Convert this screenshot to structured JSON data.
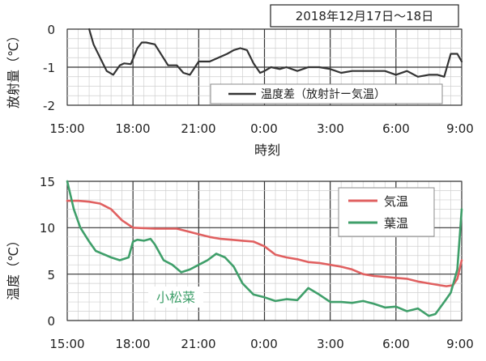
{
  "top_chart": {
    "date_label": "2018年12月17日～18日",
    "ylabel": "放射量（℃）",
    "xlabel": "時刻",
    "legend_label": "温度差（放射計ー気温）",
    "ytick_labels": [
      "0",
      "-1",
      "-2"
    ],
    "xtick_labels": [
      "15:00",
      "18:00",
      "21:00",
      "0:00",
      "3:00",
      "6:00",
      "9:00"
    ]
  },
  "bottom_chart": {
    "ylabel": "温度（℃）",
    "annotation": "小松菜",
    "legend": [
      {
        "label": "気温",
        "color": "#e06060"
      },
      {
        "label": "葉温",
        "color": "#3f9f6a"
      }
    ],
    "ytick_labels": [
      "15",
      "10",
      "5",
      "0"
    ],
    "xtick_labels": [
      "15:00",
      "18:00",
      "21:00",
      "0:00",
      "3:00",
      "6:00",
      "9:00"
    ]
  },
  "chart_data": [
    {
      "type": "line",
      "ylabel": "放射量（℃）",
      "xlabel": "時刻",
      "x_unit": "hours from 15:00",
      "ylim": [
        -2,
        0
      ],
      "xlim": [
        0,
        18
      ],
      "grid": true,
      "legend_position": "bottom-right",
      "series": [
        {
          "name": "温度差（放射計ー気温）",
          "color": "#333333",
          "x": [
            1.0,
            1.2,
            1.5,
            1.8,
            2.1,
            2.4,
            2.6,
            2.9,
            3.2,
            3.4,
            3.6,
            4.0,
            4.6,
            5.0,
            5.3,
            5.6,
            6.0,
            6.5,
            6.9,
            7.3,
            7.6,
            7.9,
            8.2,
            8.5,
            8.8,
            9.0,
            9.3,
            9.7,
            10.0,
            10.5,
            11.0,
            11.5,
            12.0,
            12.5,
            13.0,
            13.5,
            14.0,
            14.5,
            15.0,
            15.5,
            16.0,
            16.5,
            16.9,
            17.2,
            17.5,
            17.8,
            18.0
          ],
          "values": [
            0.0,
            -0.4,
            -0.75,
            -1.1,
            -1.2,
            -0.95,
            -0.9,
            -0.92,
            -0.5,
            -0.35,
            -0.35,
            -0.4,
            -0.95,
            -0.95,
            -1.15,
            -1.2,
            -0.85,
            -0.85,
            -0.75,
            -0.65,
            -0.55,
            -0.5,
            -0.55,
            -0.9,
            -1.15,
            -1.1,
            -1.0,
            -1.05,
            -1.0,
            -1.1,
            -1.0,
            -1.0,
            -1.05,
            -1.15,
            -1.1,
            -1.1,
            -1.1,
            -1.1,
            -1.2,
            -1.1,
            -1.25,
            -1.2,
            -1.2,
            -1.25,
            -0.65,
            -0.65,
            -0.85
          ]
        }
      ]
    },
    {
      "type": "line",
      "ylabel": "温度（℃）",
      "x_unit": "hours from 15:00",
      "ylim": [
        0,
        15
      ],
      "xlim": [
        0,
        18
      ],
      "grid": true,
      "legend_position": "top-right",
      "annotations": [
        "小松菜"
      ],
      "series": [
        {
          "name": "気温",
          "color": "#e06060",
          "x": [
            0,
            0.5,
            1.0,
            1.5,
            2.0,
            2.5,
            3.0,
            4.0,
            5.0,
            5.5,
            6.0,
            6.5,
            7.0,
            7.5,
            8.0,
            8.5,
            9.0,
            9.5,
            10.0,
            10.5,
            11.0,
            11.5,
            12.0,
            12.5,
            13.0,
            13.5,
            14.0,
            14.5,
            15.0,
            15.5,
            16.0,
            16.5,
            17.0,
            17.3,
            17.6,
            17.8,
            18.0
          ],
          "values": [
            12.9,
            12.9,
            12.8,
            12.6,
            12.0,
            10.8,
            10.0,
            9.9,
            9.9,
            9.6,
            9.3,
            9.0,
            8.8,
            8.7,
            8.6,
            8.5,
            8.0,
            7.1,
            6.8,
            6.6,
            6.3,
            6.2,
            6.0,
            5.8,
            5.5,
            5.0,
            4.8,
            4.7,
            4.6,
            4.5,
            4.2,
            4.0,
            3.8,
            3.7,
            3.8,
            4.5,
            6.5
          ]
        },
        {
          "name": "葉温",
          "color": "#3f9f6a",
          "x": [
            0,
            0.3,
            0.6,
            1.0,
            1.3,
            1.6,
            2.0,
            2.4,
            2.8,
            3.0,
            3.2,
            3.5,
            3.8,
            4.0,
            4.4,
            4.8,
            5.2,
            5.6,
            6.0,
            6.4,
            6.8,
            7.2,
            7.6,
            8.0,
            8.5,
            9.0,
            9.5,
            10.0,
            10.5,
            11.0,
            11.5,
            12.0,
            12.5,
            13.0,
            13.5,
            14.0,
            14.5,
            15.0,
            15.5,
            16.0,
            16.5,
            16.8,
            17.2,
            17.5,
            17.8,
            18.0
          ],
          "values": [
            15.0,
            12.0,
            10.0,
            8.5,
            7.5,
            7.2,
            6.8,
            6.5,
            6.8,
            8.5,
            8.7,
            8.6,
            8.8,
            8.2,
            6.5,
            6.0,
            5.2,
            5.5,
            6.0,
            6.5,
            7.2,
            6.8,
            5.8,
            4.0,
            2.8,
            2.5,
            2.1,
            2.3,
            2.2,
            3.5,
            2.8,
            2.0,
            2.0,
            1.9,
            2.1,
            1.8,
            1.4,
            1.5,
            1.0,
            1.3,
            0.5,
            0.7,
            2.0,
            3.0,
            5.5,
            12.0
          ]
        }
      ]
    }
  ]
}
